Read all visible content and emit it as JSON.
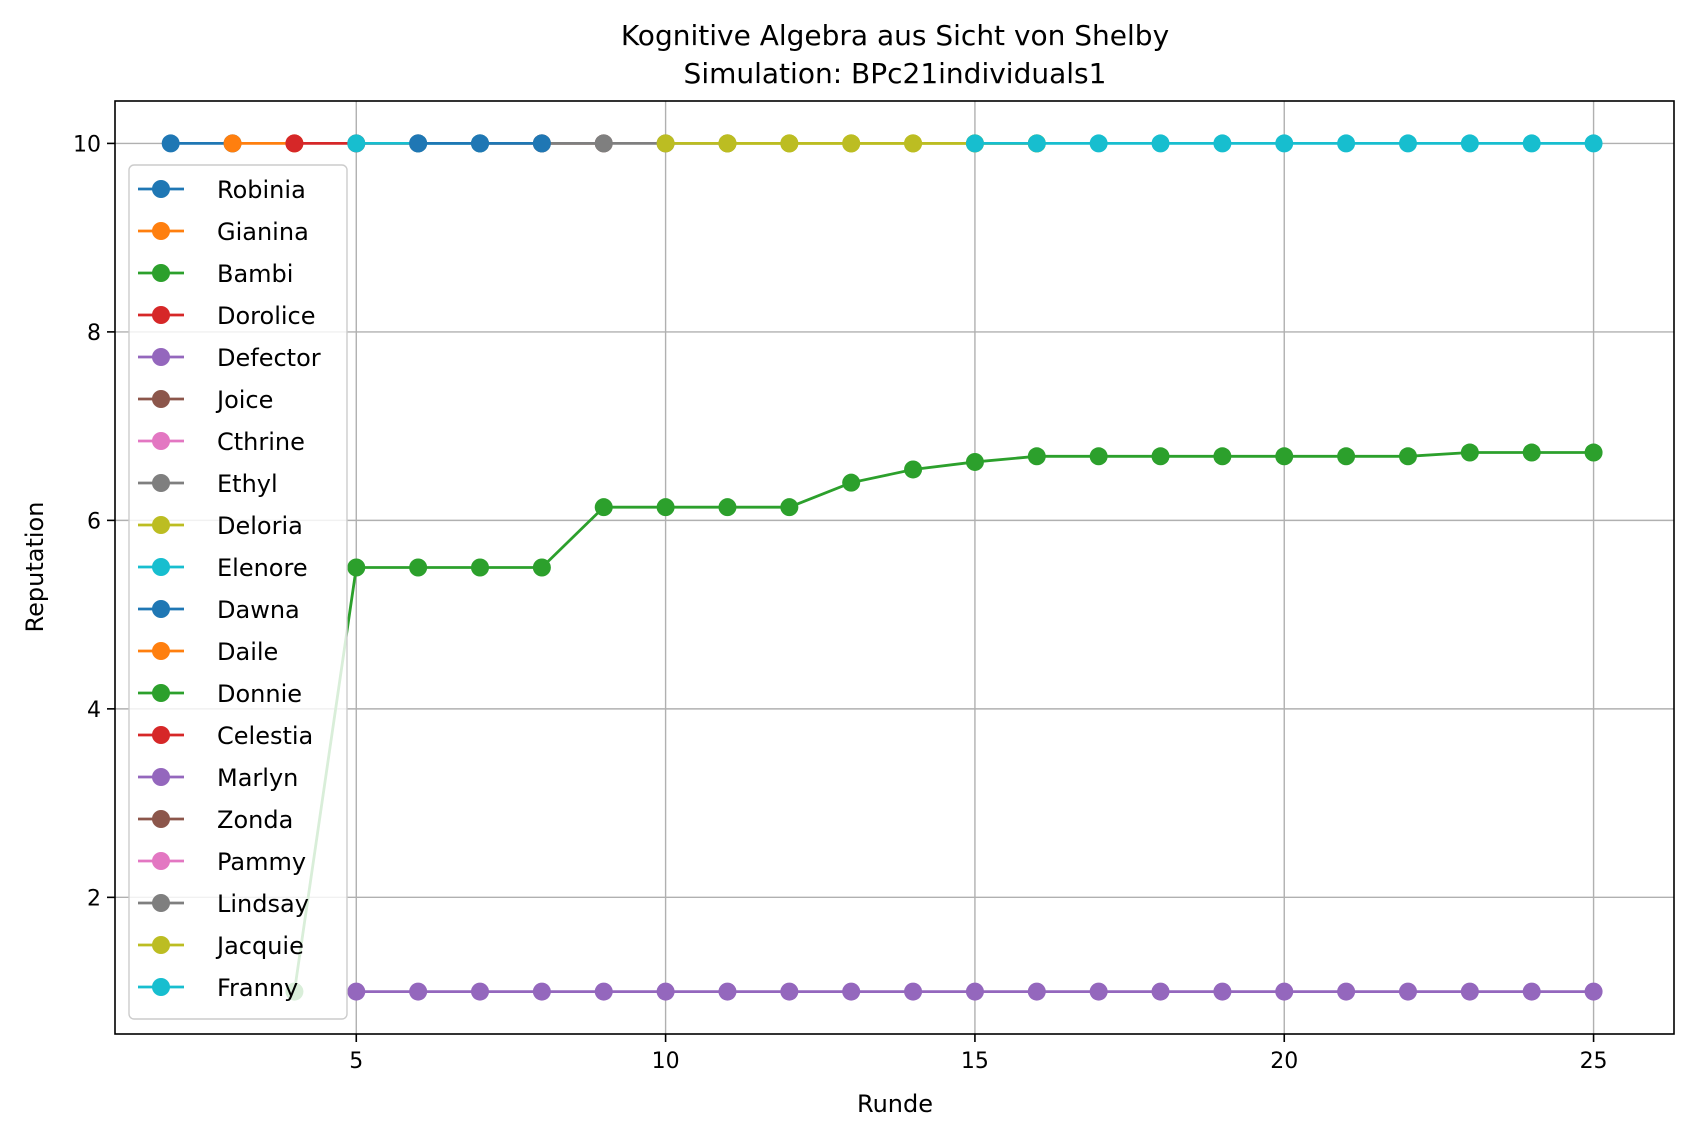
{
  "chart_data": {
    "type": "line",
    "title": "Kognitive Algebra aus Sicht von Shelby",
    "subtitle": "Simulation: BPc21individuals1",
    "xlabel": "Runde",
    "ylabel": "Reputation",
    "xlim": [
      1.1,
      26.3
    ],
    "ylim": [
      0.55,
      10.45
    ],
    "xticks": [
      5,
      10,
      15,
      20,
      25
    ],
    "yticks": [
      2,
      4,
      6,
      8,
      10
    ],
    "grid": true,
    "legend_position": "left, upper",
    "series": [
      {
        "name": "Robinia",
        "color": "#1f77b4",
        "x": [
          2,
          3
        ],
        "y": [
          10,
          10
        ]
      },
      {
        "name": "Gianina",
        "color": "#ff7f0e",
        "x": [
          3,
          4
        ],
        "y": [
          10,
          10
        ]
      },
      {
        "name": "Bambi",
        "color": "#2ca02c",
        "x": [
          4,
          5,
          6,
          7,
          8,
          9,
          10,
          11,
          12,
          13,
          14,
          15,
          16,
          17,
          18,
          19,
          20,
          21,
          22,
          23,
          24,
          25
        ],
        "y": [
          1.0,
          5.5,
          5.5,
          5.5,
          5.5,
          6.14,
          6.14,
          6.14,
          6.14,
          6.4,
          6.54,
          6.62,
          6.68,
          6.68,
          6.68,
          6.68,
          6.68,
          6.68,
          6.68,
          6.72,
          6.72,
          6.72
        ]
      },
      {
        "name": "Dorolice",
        "color": "#d62728",
        "x": [
          4,
          5,
          6
        ],
        "y": [
          10,
          10,
          10
        ]
      },
      {
        "name": "Defector",
        "color": "#9467bd",
        "x": [
          5,
          6,
          7,
          8,
          9,
          10,
          11,
          12,
          13,
          14,
          15,
          16,
          17,
          18,
          19,
          20,
          21,
          22,
          23,
          24,
          25
        ],
        "y": [
          1,
          1,
          1,
          1,
          1,
          1,
          1,
          1,
          1,
          1,
          1,
          1,
          1,
          1,
          1,
          1,
          1,
          1,
          1,
          1,
          1
        ]
      },
      {
        "name": "Joice",
        "color": "#8c564b",
        "x": [
          7,
          8,
          9
        ],
        "y": [
          10,
          10,
          10
        ]
      },
      {
        "name": "Cthrine",
        "color": "#e377c2",
        "x": [],
        "y": []
      },
      {
        "name": "Ethyl",
        "color": "#7f7f7f",
        "x": [
          8,
          9,
          10,
          11
        ],
        "y": [
          10,
          10,
          10,
          10
        ]
      },
      {
        "name": "Deloria",
        "color": "#bcbd22",
        "x": [
          10,
          11,
          12,
          13,
          14,
          15,
          16
        ],
        "y": [
          10,
          10,
          10,
          10,
          10,
          10,
          10
        ]
      },
      {
        "name": "Elenore",
        "color": "#17becf",
        "x": [
          5,
          6,
          7
        ],
        "y": [
          10,
          10,
          10
        ]
      },
      {
        "name": "Dawna",
        "color": "#1f77b4",
        "x": [
          6,
          7,
          8
        ],
        "y": [
          10,
          10,
          10
        ]
      },
      {
        "name": "Daile",
        "color": "#ff7f0e",
        "x": [],
        "y": []
      },
      {
        "name": "Donnie",
        "color": "#2ca02c",
        "x": [],
        "y": []
      },
      {
        "name": "Celestia",
        "color": "#d62728",
        "x": [],
        "y": []
      },
      {
        "name": "Marlyn",
        "color": "#9467bd",
        "x": [],
        "y": []
      },
      {
        "name": "Zonda",
        "color": "#8c564b",
        "x": [],
        "y": []
      },
      {
        "name": "Pammy",
        "color": "#e377c2",
        "x": [],
        "y": []
      },
      {
        "name": "Lindsay",
        "color": "#7f7f7f",
        "x": [],
        "y": []
      },
      {
        "name": "Jacquie",
        "color": "#bcbd22",
        "x": [
          11,
          12,
          13,
          14,
          15,
          16
        ],
        "y": [
          10,
          10,
          10,
          10,
          10,
          10
        ]
      },
      {
        "name": "Franny",
        "color": "#17becf",
        "x": [
          15,
          16,
          17,
          18,
          19,
          20,
          21,
          22,
          23,
          24,
          25
        ],
        "y": [
          10,
          10,
          10,
          10,
          10,
          10,
          10,
          10,
          10,
          10,
          10
        ]
      }
    ]
  }
}
